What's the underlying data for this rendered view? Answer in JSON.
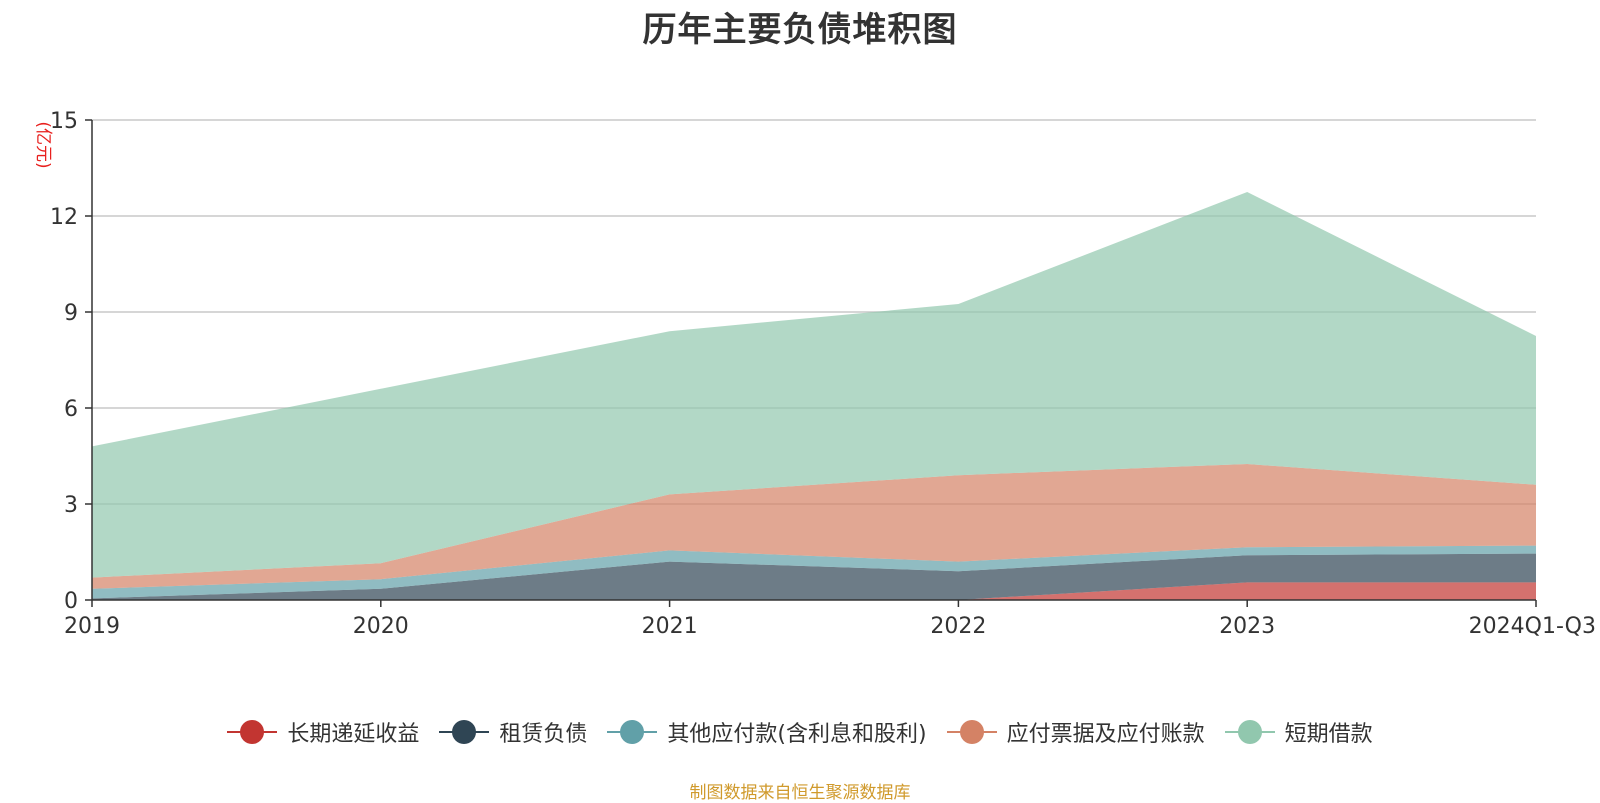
{
  "chart_data": {
    "type": "area",
    "stacked": true,
    "title": "历年主要负债堆积图",
    "unit_label": "(亿元)",
    "categories": [
      "2019",
      "2020",
      "2021",
      "2022",
      "2023",
      "2024Q1-Q3"
    ],
    "ylim": [
      0,
      15
    ],
    "yticks": [
      0,
      3,
      6,
      9,
      12,
      15
    ],
    "grid": true,
    "legend_position": "bottom",
    "series": [
      {
        "name": "长期递延收益",
        "color": "#c23531",
        "values": [
          0.0,
          0.0,
          0.0,
          0.0,
          0.55,
          0.55
        ]
      },
      {
        "name": "租赁负债",
        "color": "#2f4554",
        "values": [
          0.05,
          0.35,
          1.2,
          0.9,
          0.85,
          0.9
        ]
      },
      {
        "name": "其他应付款(含利息和股利)",
        "color": "#61a0a8",
        "values": [
          0.3,
          0.3,
          0.35,
          0.3,
          0.25,
          0.25
        ]
      },
      {
        "name": "应付票据及应付账款",
        "color": "#d48265",
        "values": [
          0.35,
          0.5,
          1.75,
          2.7,
          2.6,
          1.9
        ]
      },
      {
        "name": "短期借款",
        "color": "#91c7ae",
        "values": [
          4.1,
          5.45,
          5.1,
          5.35,
          8.5,
          4.65
        ]
      }
    ]
  },
  "source_note": "制图数据来自恒生聚源数据库"
}
